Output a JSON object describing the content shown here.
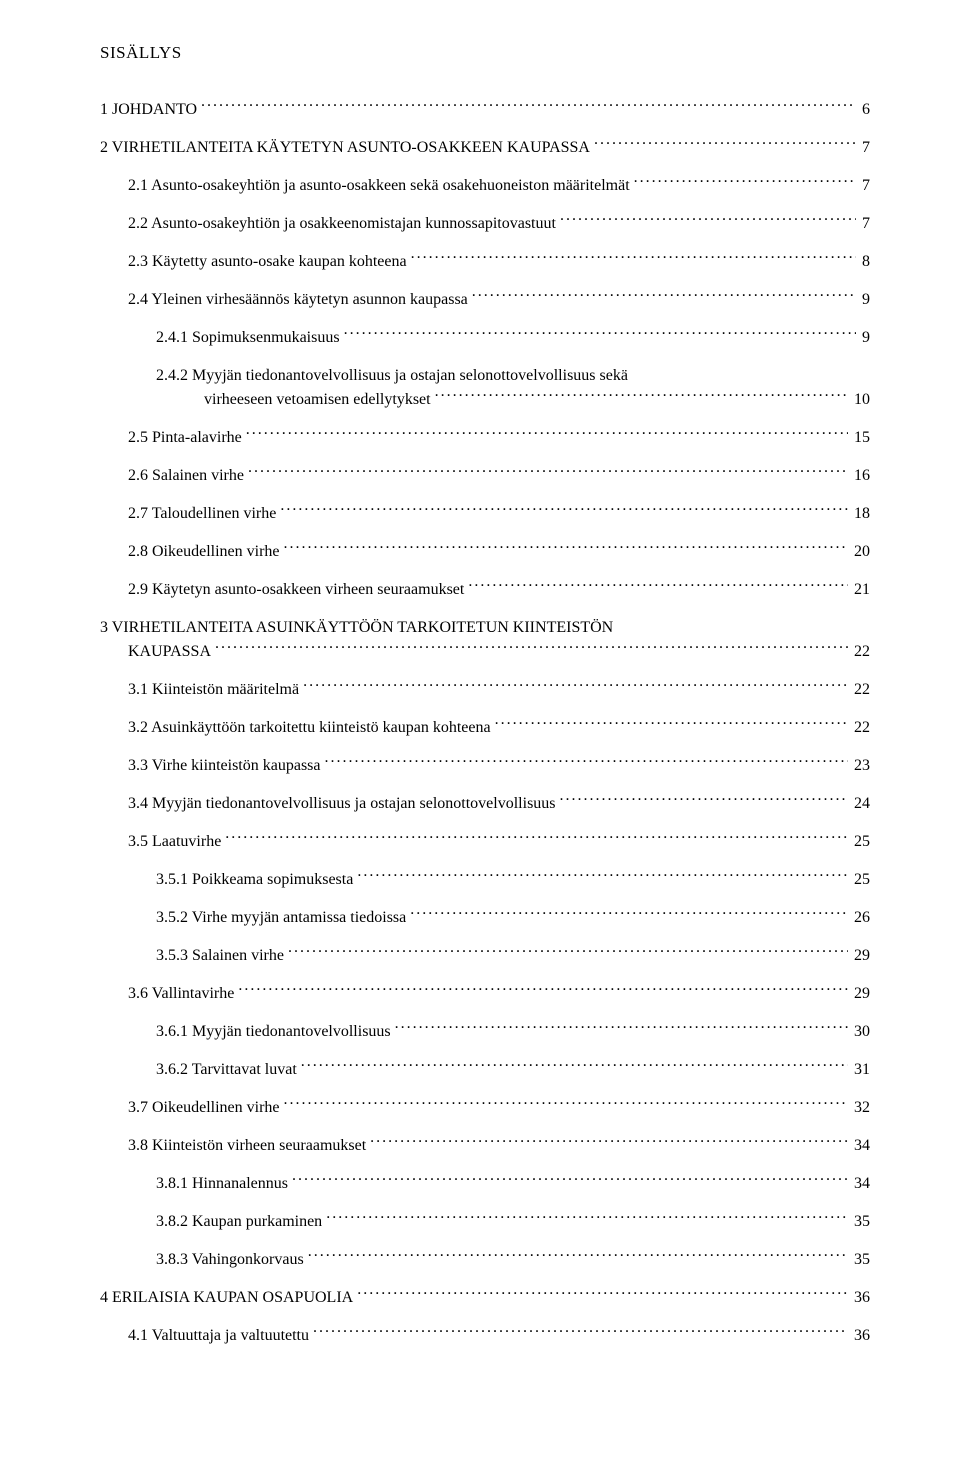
{
  "title": "SISÄLLYS",
  "entries": [
    {
      "id": "e1",
      "level": 0,
      "label": "1   JOHDANTO",
      "page": "6"
    },
    {
      "id": "e2",
      "level": 0,
      "label": "2   VIRHETILANTEITA KÄYTETYN ASUNTO-OSAKKEEN KAUPASSA",
      "page": "7"
    },
    {
      "id": "e3",
      "level": 1,
      "label": "2.1   Asunto-osakeyhtiön ja asunto-osakkeen sekä osakehuoneiston määritelmät",
      "page": "7"
    },
    {
      "id": "e4",
      "level": 1,
      "label": "2.2   Asunto-osakeyhtiön ja osakkeenomistajan kunnossapitovastuut",
      "page": "7"
    },
    {
      "id": "e5",
      "level": 1,
      "label": "2.3   Käytetty asunto-osake kaupan kohteena",
      "page": "8"
    },
    {
      "id": "e6",
      "level": 1,
      "label": "2.4   Yleinen virhesäännös käytetyn asunnon kaupassa",
      "page": "9"
    },
    {
      "id": "e7",
      "level": 2,
      "label": "2.4.1 Sopimuksenmukaisuus",
      "page": "9"
    },
    {
      "id": "e8",
      "level": 2,
      "ml": true,
      "line1": "2.4.2 Myyjän tiedonantovelvollisuus ja ostajan selonottovelvollisuus sekä",
      "line2": "virheeseen vetoamisen edellytykset",
      "page": "10"
    },
    {
      "id": "e9",
      "level": 1,
      "label": "2.5   Pinta-alavirhe",
      "page": "15"
    },
    {
      "id": "e10",
      "level": 1,
      "label": "2.6   Salainen virhe",
      "page": "16"
    },
    {
      "id": "e11",
      "level": 1,
      "label": "2.7   Taloudellinen virhe",
      "page": "18"
    },
    {
      "id": "e12",
      "level": 1,
      "label": "2.8   Oikeudellinen virhe",
      "page": "20"
    },
    {
      "id": "e13",
      "level": 1,
      "label": "2.9   Käytetyn asunto-osakkeen virheen seuraamukset",
      "page": "21"
    },
    {
      "id": "e14",
      "level": 0,
      "ml": true,
      "line1": "3   VIRHETILANTEITA ASUINKÄYTTÖÖN TARKOITETUN KIINTEISTÖN",
      "line2": "KAUPASSA",
      "page": "22"
    },
    {
      "id": "e15",
      "level": 1,
      "label": "3.1   Kiinteistön määritelmä",
      "page": "22"
    },
    {
      "id": "e16",
      "level": 1,
      "label": "3.2   Asuinkäyttöön tarkoitettu kiinteistö kaupan kohteena",
      "page": "22"
    },
    {
      "id": "e17",
      "level": 1,
      "label": "3.3   Virhe kiinteistön kaupassa",
      "page": "23"
    },
    {
      "id": "e18",
      "level": 1,
      "label": "3.4   Myyjän tiedonantovelvollisuus ja ostajan selonottovelvollisuus",
      "page": "24"
    },
    {
      "id": "e19",
      "level": 1,
      "label": "3.5   Laatuvirhe",
      "page": "25"
    },
    {
      "id": "e20",
      "level": 2,
      "label": "3.5.1 Poikkeama sopimuksesta",
      "page": "25"
    },
    {
      "id": "e21",
      "level": 2,
      "label": "3.5.2 Virhe myyjän antamissa tiedoissa",
      "page": "26"
    },
    {
      "id": "e22",
      "level": 2,
      "label": "3.5.3 Salainen virhe   ",
      "page": "29"
    },
    {
      "id": "e23",
      "level": 1,
      "label": "3.6   Vallintavirhe",
      "page": "29"
    },
    {
      "id": "e24",
      "level": 2,
      "label": "3.6.1 Myyjän tiedonantovelvollisuus",
      "page": "30"
    },
    {
      "id": "e25",
      "level": 2,
      "label": "3.6.2 Tarvittavat luvat   ",
      "page": "31"
    },
    {
      "id": "e26",
      "level": 1,
      "label": "3.7   Oikeudellinen virhe",
      "page": "32"
    },
    {
      "id": "e27",
      "level": 1,
      "label": "3.8   Kiinteistön virheen seuraamukset",
      "page": "34"
    },
    {
      "id": "e28",
      "level": 2,
      "label": "3.8.1 Hinnanalennus   ",
      "page": "34"
    },
    {
      "id": "e29",
      "level": 2,
      "label": "3.8.2 Kaupan purkaminen",
      "page": "35"
    },
    {
      "id": "e30",
      "level": 2,
      "label": "3.8.3 Vahingonkorvaus",
      "page": "35"
    },
    {
      "id": "e31",
      "level": 0,
      "label": "4   ERILAISIA KAUPAN OSAPUOLIA",
      "page": "36"
    },
    {
      "id": "e32",
      "level": 1,
      "label": "4.1   Valtuuttaja ja valtuutettu",
      "page": "36"
    }
  ]
}
